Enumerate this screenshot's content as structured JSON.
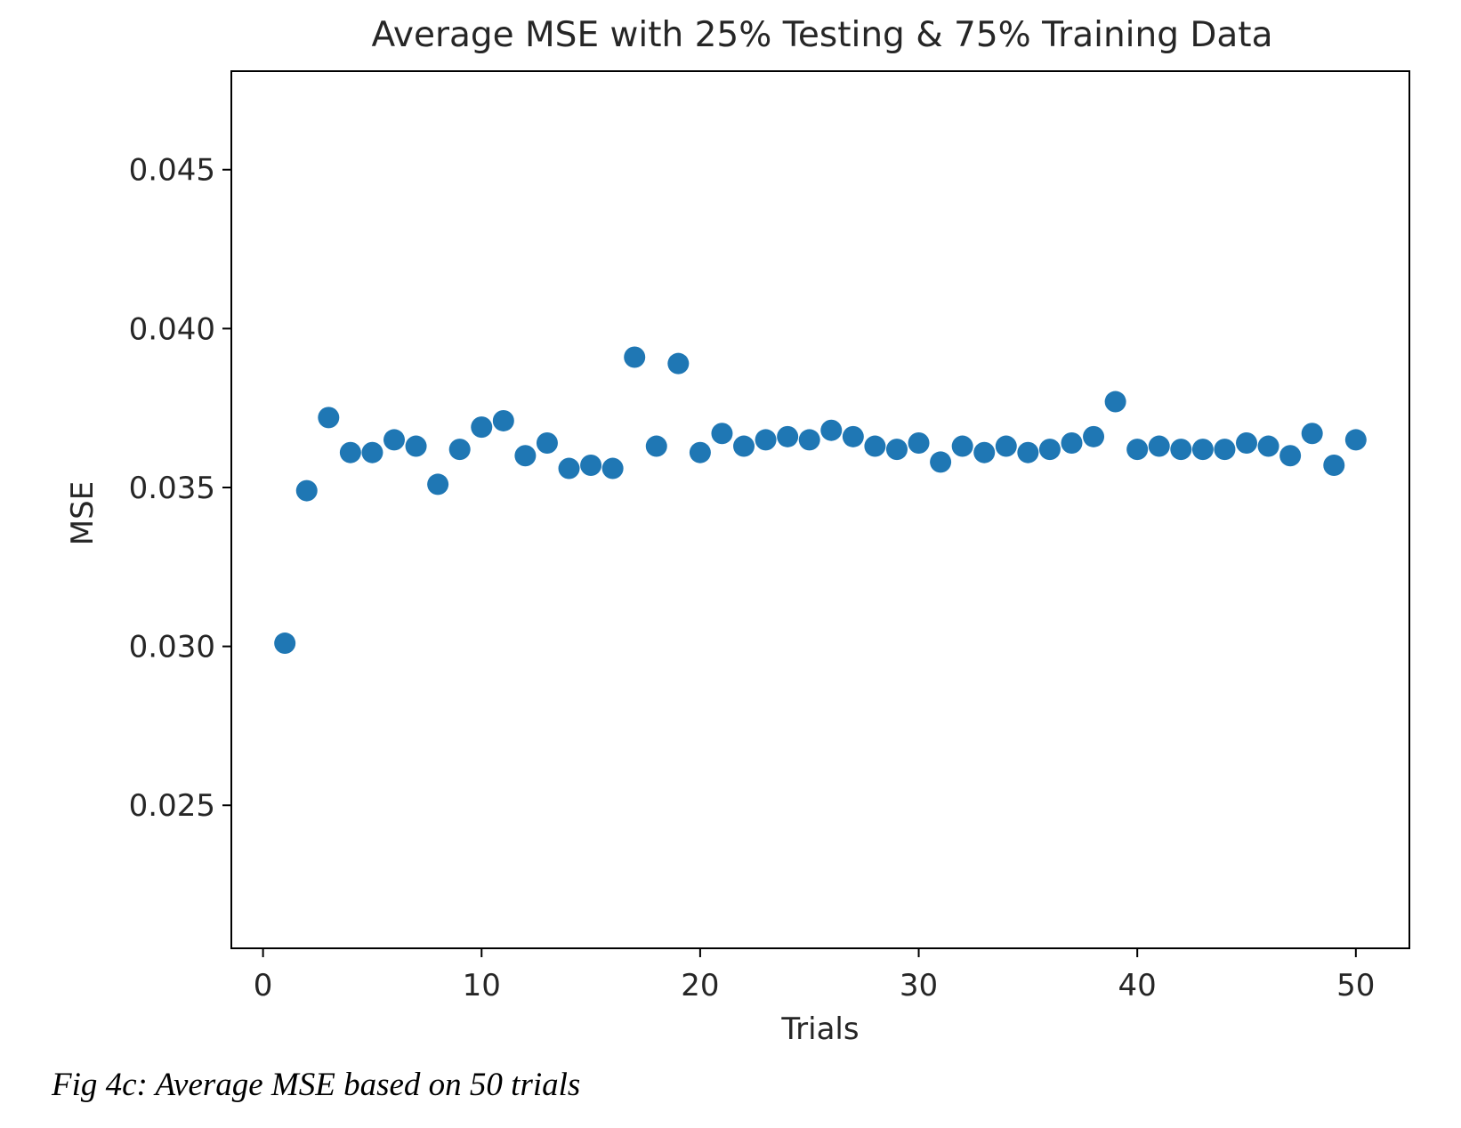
{
  "chart_data": {
    "type": "scatter",
    "title": "Average MSE with 25% Testing & 75% Training Data",
    "xlabel": "Trials",
    "ylabel": "MSE",
    "xlim": [
      -1.45,
      52.45
    ],
    "ylim": [
      0.0205,
      0.0481
    ],
    "xticks": [
      0,
      10,
      20,
      30,
      40,
      50
    ],
    "xtick_labels": [
      "0",
      "10",
      "20",
      "30",
      "40",
      "50"
    ],
    "yticks": [
      0.025,
      0.03,
      0.035,
      0.04,
      0.045
    ],
    "ytick_labels": [
      "0.025",
      "0.030",
      "0.035",
      "0.040",
      "0.045"
    ],
    "marker_color": "#1f77b4",
    "grid": false,
    "legend": false,
    "x": [
      1,
      2,
      3,
      4,
      5,
      6,
      7,
      8,
      9,
      10,
      11,
      12,
      13,
      14,
      15,
      16,
      17,
      18,
      19,
      20,
      21,
      22,
      23,
      24,
      25,
      26,
      27,
      28,
      29,
      30,
      31,
      32,
      33,
      34,
      35,
      36,
      37,
      38,
      39,
      40,
      41,
      42,
      43,
      44,
      45,
      46,
      47,
      48,
      49,
      50
    ],
    "y": [
      0.0301,
      0.0349,
      0.0372,
      0.0361,
      0.0361,
      0.0365,
      0.0363,
      0.0351,
      0.0362,
      0.0369,
      0.0371,
      0.036,
      0.0364,
      0.0356,
      0.0357,
      0.0356,
      0.0391,
      0.0363,
      0.0389,
      0.0361,
      0.0367,
      0.0363,
      0.0365,
      0.0366,
      0.0365,
      0.0368,
      0.0366,
      0.0363,
      0.0362,
      0.0364,
      0.0358,
      0.0363,
      0.0361,
      0.0363,
      0.0361,
      0.0362,
      0.0364,
      0.0366,
      0.0377,
      0.0362,
      0.0363,
      0.0362,
      0.0362,
      0.0362,
      0.0364,
      0.0363,
      0.036,
      0.0367,
      0.0357,
      0.0365
    ]
  },
  "caption": "Fig 4c: Average MSE based on 50 trials"
}
